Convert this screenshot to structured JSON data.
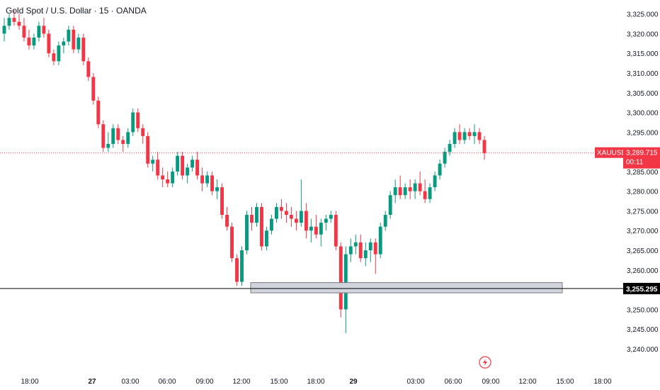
{
  "header": {
    "title": "Gold Spot / U.S. Dollar · 15 · OANDA"
  },
  "colors": {
    "up": "#089981",
    "down": "#f23645",
    "price_line": "#f23645",
    "support_line": "#000000",
    "zone_fill": "#d1d4dc",
    "zone_border": "#787b86",
    "axis_text": "#131722"
  },
  "icons": {
    "flash": "lightning-bolt-icon"
  },
  "chart_data": {
    "type": "candlestick",
    "symbol": "XAUUSD",
    "ylim": [
      3238,
      3328
    ],
    "y_ticks": [
      3325,
      3320,
      3315,
      3310,
      3305,
      3300,
      3295,
      3290,
      3285,
      3280,
      3275,
      3270,
      3265,
      3260,
      3255,
      3250,
      3245,
      3240
    ],
    "y_tick_labels": [
      "3,325.000",
      "3,320.000",
      "3,315.000",
      "3,310.000",
      "3,305.000",
      "3,300.000",
      "3,295.000",
      "3,290.000",
      "3,285.000",
      "3,280.000",
      "3,275.000",
      "3,270.000",
      "3,265.000",
      "3,260.000",
      "3,255.000",
      "3,250.000",
      "3,245.000",
      "3,240.000"
    ],
    "x_ticks": [
      "18:00",
      "27",
      "03:00",
      "06:00",
      "09:00",
      "12:00",
      "15:00",
      "18:00",
      "29",
      "03:00",
      "06:00",
      "09:00",
      "12:00",
      "15:00",
      "18:00"
    ],
    "current_price": {
      "label": "XAUUSD",
      "value": 3289.715,
      "value_label": "3,289.715",
      "countdown": "00:11"
    },
    "support_line": {
      "value": 3255.295,
      "value_label": "3,255.295"
    },
    "zone": {
      "low": 3254.2,
      "high": 3256.8
    },
    "candles": [
      [
        3320,
        3324,
        3318,
        3322
      ],
      [
        3322,
        3325,
        3321,
        3324
      ],
      [
        3324,
        3326,
        3322,
        3323
      ],
      [
        3323,
        3325,
        3321,
        3322
      ],
      [
        3322,
        3324,
        3318,
        3319
      ],
      [
        3319,
        3321,
        3316,
        3317
      ],
      [
        3317,
        3320,
        3316,
        3319
      ],
      [
        3319,
        3323,
        3318,
        3322
      ],
      [
        3322,
        3324,
        3319,
        3320
      ],
      [
        3320,
        3321,
        3314,
        3315
      ],
      [
        3315,
        3316,
        3312,
        3313
      ],
      [
        3313,
        3318,
        3312,
        3317
      ],
      [
        3317,
        3319,
        3315,
        3318
      ],
      [
        3318,
        3322,
        3317,
        3321
      ],
      [
        3321,
        3322,
        3315,
        3316
      ],
      [
        3316,
        3320,
        3315,
        3319
      ],
      [
        3319,
        3320,
        3312,
        3313
      ],
      [
        3313,
        3314,
        3308,
        3309
      ],
      [
        3309,
        3310,
        3302,
        3303
      ],
      [
        3303,
        3304,
        3296,
        3297
      ],
      [
        3297,
        3298,
        3290,
        3291
      ],
      [
        3291,
        3295,
        3290,
        3292
      ],
      [
        3292,
        3297,
        3291,
        3296
      ],
      [
        3296,
        3297,
        3292,
        3293
      ],
      [
        3293,
        3294,
        3290,
        3292
      ],
      [
        3292,
        3296,
        3291,
        3295
      ],
      [
        3295,
        3301,
        3294,
        3300
      ],
      [
        3300,
        3301,
        3295,
        3296
      ],
      [
        3296,
        3297,
        3292,
        3294
      ],
      [
        3294,
        3295,
        3286,
        3287
      ],
      [
        3287,
        3289,
        3285,
        3288
      ],
      [
        3288,
        3290,
        3283,
        3284
      ],
      [
        3284,
        3286,
        3281,
        3283
      ],
      [
        3283,
        3285,
        3281,
        3282
      ],
      [
        3282,
        3286,
        3281,
        3285
      ],
      [
        3285,
        3290,
        3284,
        3289
      ],
      [
        3289,
        3290,
        3283,
        3284
      ],
      [
        3284,
        3287,
        3282,
        3286
      ],
      [
        3286,
        3289,
        3285,
        3288
      ],
      [
        3288,
        3290,
        3283,
        3284
      ],
      [
        3284,
        3286,
        3280,
        3282
      ],
      [
        3282,
        3285,
        3281,
        3284
      ],
      [
        3284,
        3285,
        3279,
        3280
      ],
      [
        3280,
        3283,
        3278,
        3281
      ],
      [
        3281,
        3282,
        3273,
        3274
      ],
      [
        3274,
        3276,
        3270,
        3271
      ],
      [
        3271,
        3272,
        3262,
        3263
      ],
      [
        3263,
        3264,
        3256,
        3257
      ],
      [
        3257,
        3266,
        3256,
        3265
      ],
      [
        3265,
        3275,
        3264,
        3274
      ],
      [
        3274,
        3276,
        3270,
        3272
      ],
      [
        3272,
        3277,
        3271,
        3276
      ],
      [
        3276,
        3277,
        3265,
        3266
      ],
      [
        3266,
        3271,
        3265,
        3270
      ],
      [
        3270,
        3274,
        3269,
        3273
      ],
      [
        3273,
        3277,
        3272,
        3276
      ],
      [
        3276,
        3278,
        3273,
        3275
      ],
      [
        3275,
        3277,
        3272,
        3274
      ],
      [
        3274,
        3276,
        3271,
        3273
      ],
      [
        3273,
        3275,
        3270,
        3272
      ],
      [
        3272,
        3283,
        3271,
        3275
      ],
      [
        3275,
        3277,
        3268,
        3270
      ],
      [
        3270,
        3273,
        3267,
        3271
      ],
      [
        3271,
        3274,
        3268,
        3269
      ],
      [
        3269,
        3273,
        3266,
        3272
      ],
      [
        3272,
        3274,
        3270,
        3273
      ],
      [
        3273,
        3275,
        3272,
        3274
      ],
      [
        3274,
        3275,
        3265,
        3266
      ],
      [
        3266,
        3267,
        3248,
        3250
      ],
      [
        3250,
        3266,
        3244,
        3264
      ],
      [
        3264,
        3268,
        3262,
        3266
      ],
      [
        3266,
        3269,
        3264,
        3267
      ],
      [
        3267,
        3269,
        3262,
        3263
      ],
      [
        3263,
        3267,
        3261,
        3265
      ],
      [
        3265,
        3268,
        3262,
        3267
      ],
      [
        3267,
        3268,
        3259,
        3264
      ],
      [
        3264,
        3272,
        3263,
        3271
      ],
      [
        3271,
        3275,
        3270,
        3274
      ],
      [
        3274,
        3280,
        3273,
        3279
      ],
      [
        3279,
        3283,
        3277,
        3281
      ],
      [
        3281,
        3284,
        3278,
        3279
      ],
      [
        3279,
        3282,
        3278,
        3281
      ],
      [
        3281,
        3283,
        3278,
        3280
      ],
      [
        3280,
        3283,
        3278,
        3282
      ],
      [
        3282,
        3285,
        3279,
        3280
      ],
      [
        3280,
        3283,
        3277,
        3278
      ],
      [
        3278,
        3282,
        3277,
        3281
      ],
      [
        3281,
        3285,
        3280,
        3284
      ],
      [
        3284,
        3288,
        3283,
        3287
      ],
      [
        3287,
        3291,
        3286,
        3290
      ],
      [
        3290,
        3293,
        3289,
        3292
      ],
      [
        3292,
        3296,
        3291,
        3295
      ],
      [
        3295,
        3297,
        3292,
        3293
      ],
      [
        3293,
        3296,
        3292,
        3295
      ],
      [
        3295,
        3296,
        3293,
        3294
      ],
      [
        3294,
        3297,
        3292,
        3295
      ],
      [
        3295,
        3296,
        3292,
        3293
      ],
      [
        3293,
        3294,
        3288,
        3289.7
      ]
    ]
  }
}
